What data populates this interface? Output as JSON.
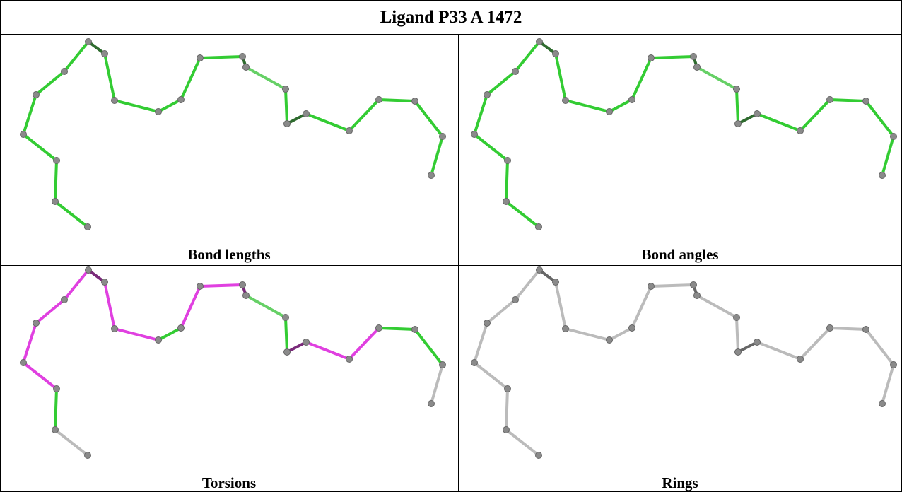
{
  "header": {
    "title": "Ligand P33 A 1472"
  },
  "panels": [
    {
      "label": "Bond lengths"
    },
    {
      "label": "Bond angles"
    },
    {
      "label": "Torsions"
    },
    {
      "label": "Rings"
    }
  ]
}
